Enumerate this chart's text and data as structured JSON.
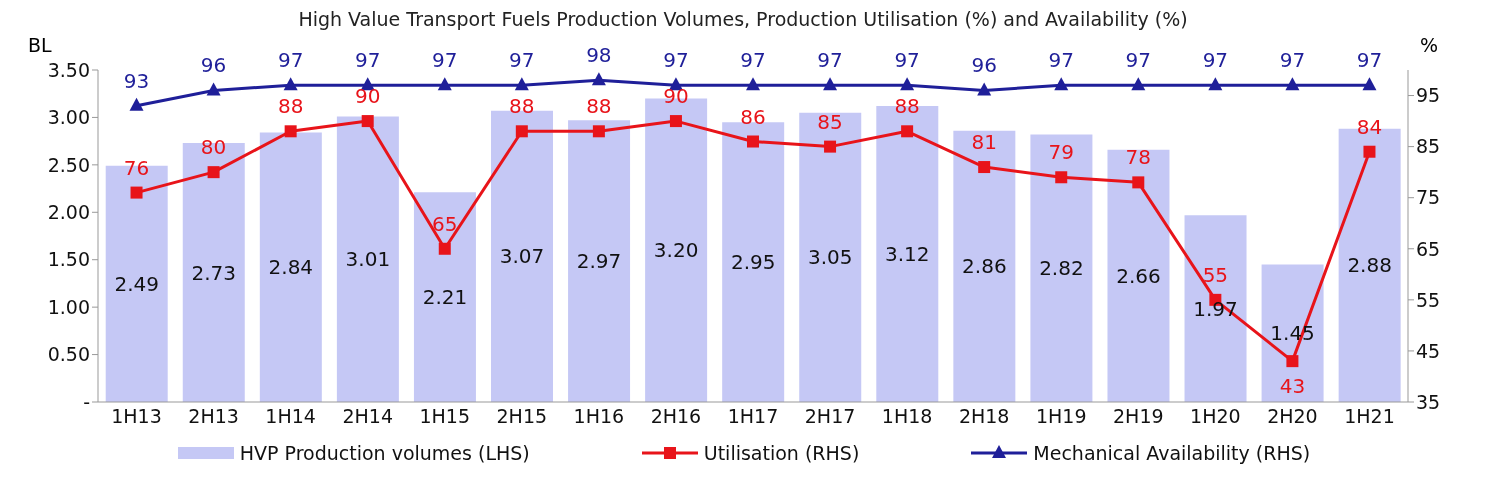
{
  "chart_data": {
    "type": "bar",
    "title": "High Value Transport Fuels Production Volumes, Production Utilisation (%) and Availability (%)",
    "ylabel": "BL",
    "y2label": "%",
    "categories": [
      "1H13",
      "2H13",
      "1H14",
      "2H14",
      "1H15",
      "2H15",
      "1H16",
      "2H16",
      "1H17",
      "2H17",
      "1H18",
      "2H18",
      "1H19",
      "2H19",
      "1H20",
      "2H20",
      "1H21"
    ],
    "series": [
      {
        "name": "HVP Production volumes (LHS)",
        "color": "#c5c8f5",
        "values": [
          2.49,
          2.73,
          2.84,
          3.01,
          2.21,
          3.07,
          2.97,
          3.2,
          2.95,
          3.05,
          3.12,
          2.86,
          2.82,
          2.66,
          1.97,
          1.45,
          2.88
        ],
        "value_labels": [
          "2.49",
          "2.73",
          "2.84",
          "3.01",
          "2.21",
          "3.07",
          "2.97",
          "3.20",
          "2.95",
          "3.05",
          "3.12",
          "2.86",
          "2.82",
          "2.66",
          "1.97",
          "1.45",
          "2.88"
        ]
      },
      {
        "name": "Utilisation (RHS)",
        "type": "line",
        "axis": "y2",
        "marker": "square",
        "color": "#e8141a",
        "values": [
          76,
          80,
          88,
          90,
          65,
          88,
          88,
          90,
          86,
          85,
          88,
          81,
          79,
          78,
          55,
          43,
          84
        ],
        "value_labels": [
          "76",
          "80",
          "88",
          "90",
          "65",
          "88",
          "88",
          "90",
          "86",
          "85",
          "88",
          "81",
          "79",
          "78",
          "55",
          "43",
          "84"
        ]
      },
      {
        "name": "Mechanical Availability (RHS)",
        "type": "line",
        "axis": "y2",
        "marker": "triangle",
        "color": "#1f1f99",
        "values": [
          93,
          96,
          97,
          97,
          97,
          97,
          98,
          97,
          97,
          97,
          97,
          96,
          97,
          97,
          97,
          97,
          97
        ],
        "value_labels": [
          "93",
          "96",
          "97",
          "97",
          "97",
          "97",
          "98",
          "97",
          "97",
          "97",
          "97",
          "96",
          "97",
          "97",
          "97",
          "97",
          "97"
        ]
      }
    ],
    "ylim": [
      0,
      3.5
    ],
    "yticks": [
      {
        "value": 0,
        "label": "-"
      },
      {
        "value": 0.5,
        "label": "0.50"
      },
      {
        "value": 1,
        "label": "1.00"
      },
      {
        "value": 1.5,
        "label": "1.50"
      },
      {
        "value": 2,
        "label": "2.00"
      },
      {
        "value": 2.5,
        "label": "2.50"
      },
      {
        "value": 3,
        "label": "3.00"
      },
      {
        "value": 3.5,
        "label": "3.50"
      }
    ],
    "y2lim": [
      35,
      100
    ],
    "y2ticks": [
      35,
      45,
      55,
      65,
      75,
      85,
      95
    ],
    "grid": false,
    "legend": "bottom"
  }
}
